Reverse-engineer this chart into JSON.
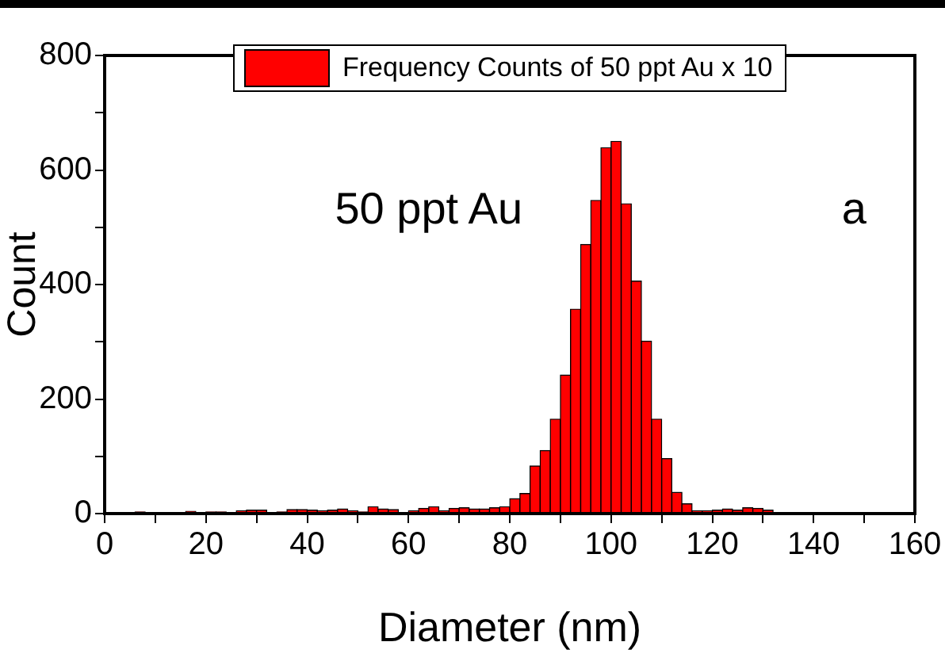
{
  "chart_data": {
    "type": "histogram",
    "xlabel": "Diameter (nm)",
    "ylabel": "Count",
    "bins": [
      0,
      2,
      4,
      6,
      8,
      10,
      12,
      14,
      16,
      18,
      20,
      22,
      24,
      26,
      28,
      30,
      32,
      34,
      36,
      38,
      40,
      42,
      44,
      46,
      48,
      50,
      52,
      54,
      56,
      58,
      60,
      62,
      64,
      66,
      68,
      70,
      72,
      74,
      76,
      78,
      80,
      82,
      84,
      86,
      88,
      90,
      92,
      94,
      96,
      98,
      100,
      102,
      104,
      106,
      108,
      110,
      112,
      114,
      116,
      118,
      120,
      122,
      124,
      126,
      128,
      130,
      132,
      134,
      136,
      138,
      140,
      142,
      144,
      146,
      148,
      150,
      152,
      154,
      156,
      158,
      160
    ],
    "series": [
      {
        "name": "Frequency Counts of 50 ppt Au x 10",
        "color": "#ff0000",
        "values": [
          0,
          0,
          0,
          3,
          0,
          1,
          0,
          0,
          4,
          0,
          3,
          3,
          0,
          5,
          6,
          6,
          0,
          3,
          7,
          7,
          6,
          5,
          6,
          8,
          5,
          3,
          12,
          8,
          7,
          2,
          5,
          9,
          12,
          5,
          9,
          10,
          8,
          8,
          10,
          12,
          26,
          35,
          83,
          110,
          165,
          242,
          357,
          470,
          547,
          639,
          650,
          541,
          406,
          301,
          165,
          96,
          37,
          17,
          5,
          5,
          6,
          8,
          6,
          10,
          9,
          6,
          0,
          1,
          0,
          0,
          1,
          0,
          0,
          0,
          0,
          1,
          0,
          0,
          0,
          0
        ]
      }
    ],
    "xlim": [
      0,
      160
    ],
    "ylim": [
      0,
      800
    ],
    "xticks": [
      0,
      {
        "value": 10,
        "label": null
      },
      20,
      {
        "value": 30,
        "label": null
      },
      40,
      {
        "value": 50,
        "label": null
      },
      60,
      {
        "value": 70,
        "label": null
      },
      80,
      {
        "value": 90,
        "label": null
      },
      100,
      {
        "value": 110,
        "label": null
      },
      120,
      {
        "value": 130,
        "label": null
      },
      140,
      {
        "value": 150,
        "label": null
      },
      160
    ],
    "yticks": [
      0,
      {
        "value": 100,
        "label": null
      },
      200,
      {
        "value": 300,
        "label": null
      },
      400,
      {
        "value": 500,
        "label": null
      },
      600,
      {
        "value": 700,
        "label": null
      },
      800
    ],
    "annotations": [
      "50 ppt Au",
      "a"
    ],
    "legend": "top",
    "grid": false
  }
}
